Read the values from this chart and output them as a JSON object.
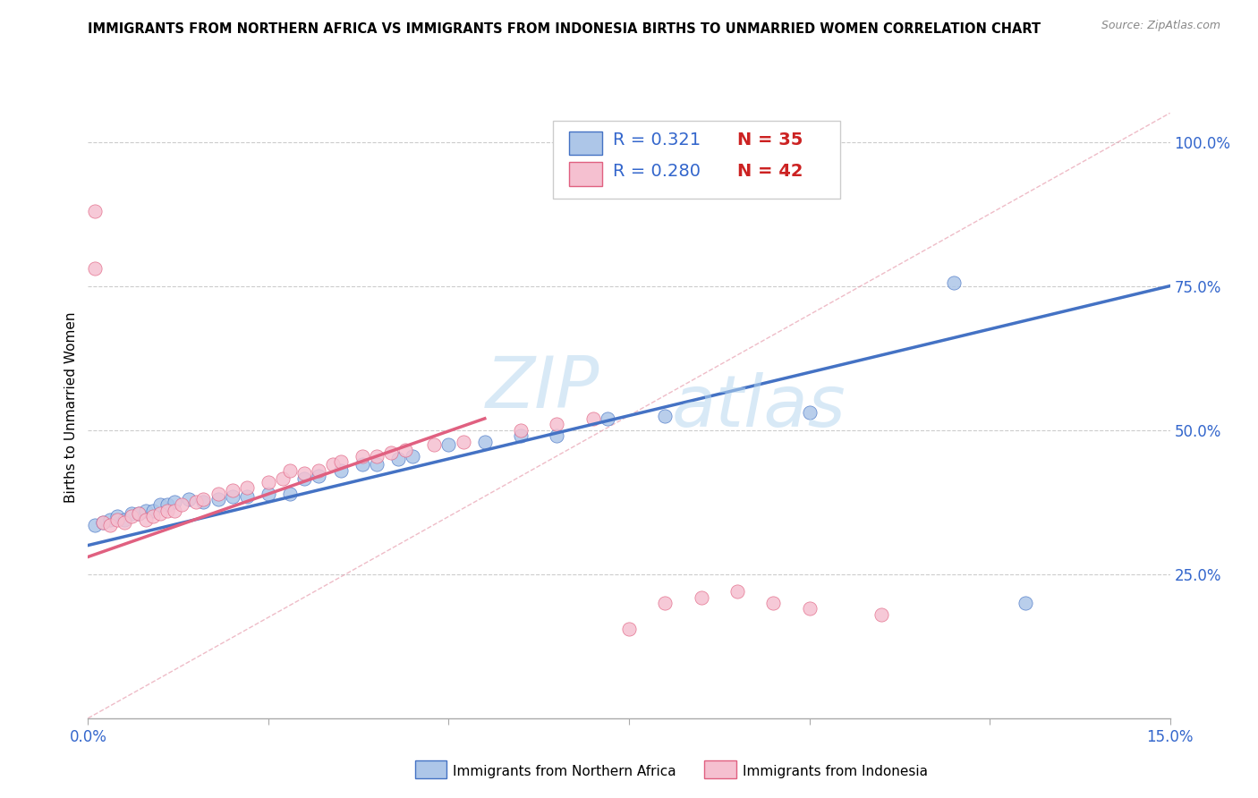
{
  "title": "IMMIGRANTS FROM NORTHERN AFRICA VS IMMIGRANTS FROM INDONESIA BIRTHS TO UNMARRIED WOMEN CORRELATION CHART",
  "source": "Source: ZipAtlas.com",
  "ylabel": "Births to Unmarried Women",
  "y_ticks": [
    "25.0%",
    "50.0%",
    "75.0%",
    "100.0%"
  ],
  "y_tick_vals": [
    0.25,
    0.5,
    0.75,
    1.0
  ],
  "xlim": [
    0.0,
    0.15
  ],
  "ylim": [
    0.0,
    1.08
  ],
  "R_blue": "0.321",
  "N_blue": "35",
  "R_pink": "0.280",
  "N_pink": "42",
  "color_blue": "#adc6e8",
  "color_pink": "#f5c0d0",
  "line_blue": "#4472c4",
  "line_pink": "#e06080",
  "legend_blue_label": "Immigrants from Northern Africa",
  "legend_pink_label": "Immigrants from Indonesia",
  "watermark_zip": "ZIP",
  "watermark_atlas": "atlas",
  "blue_scatter_x": [
    0.001,
    0.002,
    0.003,
    0.004,
    0.005,
    0.006,
    0.007,
    0.008,
    0.009,
    0.01,
    0.011,
    0.012,
    0.014,
    0.016,
    0.018,
    0.02,
    0.022,
    0.025,
    0.028,
    0.03,
    0.032,
    0.035,
    0.038,
    0.04,
    0.043,
    0.045,
    0.05,
    0.055,
    0.06,
    0.065,
    0.072,
    0.08,
    0.1,
    0.12,
    0.13
  ],
  "blue_scatter_y": [
    0.335,
    0.34,
    0.345,
    0.35,
    0.345,
    0.355,
    0.355,
    0.36,
    0.36,
    0.37,
    0.37,
    0.375,
    0.38,
    0.375,
    0.38,
    0.385,
    0.385,
    0.39,
    0.39,
    0.415,
    0.42,
    0.43,
    0.44,
    0.44,
    0.45,
    0.455,
    0.475,
    0.48,
    0.49,
    0.49,
    0.52,
    0.525,
    0.53,
    0.755,
    0.2
  ],
  "pink_scatter_x": [
    0.001,
    0.001,
    0.002,
    0.003,
    0.004,
    0.005,
    0.006,
    0.007,
    0.008,
    0.009,
    0.01,
    0.011,
    0.012,
    0.013,
    0.015,
    0.016,
    0.018,
    0.02,
    0.022,
    0.025,
    0.027,
    0.028,
    0.03,
    0.032,
    0.034,
    0.035,
    0.038,
    0.04,
    0.042,
    0.044,
    0.048,
    0.052,
    0.06,
    0.065,
    0.07,
    0.075,
    0.08,
    0.085,
    0.09,
    0.095,
    0.1,
    0.11
  ],
  "pink_scatter_y": [
    0.88,
    0.78,
    0.34,
    0.335,
    0.345,
    0.34,
    0.35,
    0.355,
    0.345,
    0.35,
    0.355,
    0.36,
    0.36,
    0.37,
    0.375,
    0.38,
    0.39,
    0.395,
    0.4,
    0.41,
    0.415,
    0.43,
    0.425,
    0.43,
    0.44,
    0.445,
    0.455,
    0.455,
    0.46,
    0.465,
    0.475,
    0.48,
    0.5,
    0.51,
    0.52,
    0.155,
    0.2,
    0.21,
    0.22,
    0.2,
    0.19,
    0.18
  ],
  "blue_line_x": [
    0.0,
    0.15
  ],
  "blue_line_y": [
    0.3,
    0.75
  ],
  "pink_line_x": [
    0.0,
    0.055
  ],
  "pink_line_y": [
    0.28,
    0.52
  ],
  "dashed_line_x": [
    0.0,
    0.15
  ],
  "dashed_line_y": [
    0.0,
    1.05
  ]
}
